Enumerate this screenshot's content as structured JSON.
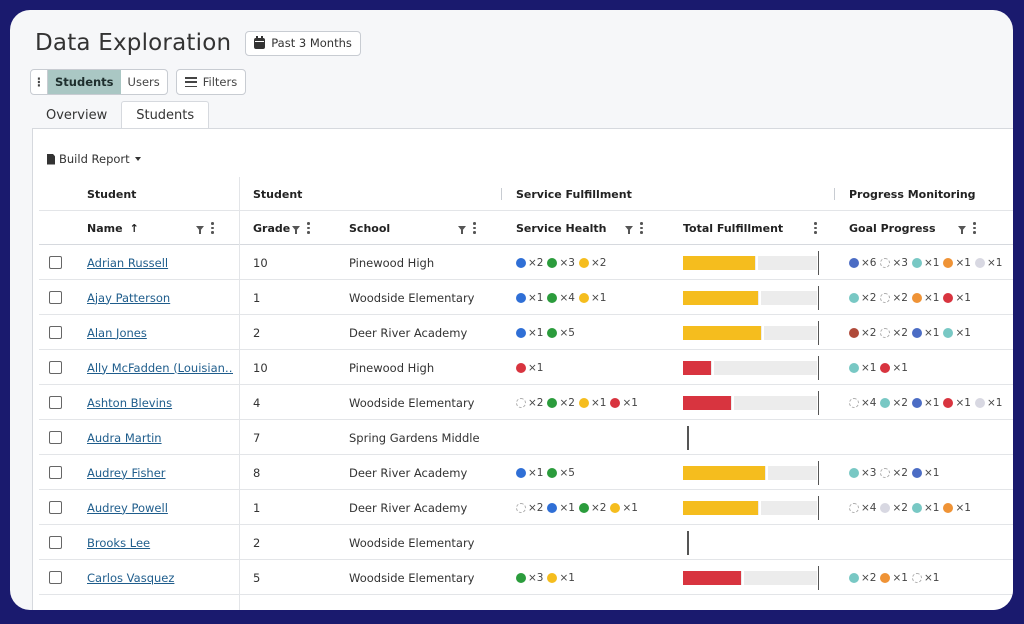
{
  "page": {
    "title": "Data Exploration",
    "date_range": "Past 3 Months",
    "view_toggle": [
      "Students",
      "Users"
    ],
    "filters_label": "Filters",
    "tabs": [
      "Overview",
      "Students"
    ],
    "build_report": "Build Report"
  },
  "colors": {
    "blue": "#2f6fd6",
    "green": "#2b9c3c",
    "yellow": "#f5bd1e",
    "red": "#d8343f",
    "teal": "#78c8c4",
    "orange": "#ef9336",
    "darkblue": "#4b6cc4",
    "brown": "#b04a3a",
    "lightgray": "#d8d8e2",
    "empty": "empty",
    "bar_yellow": "#f5bd1e",
    "bar_red": "#d8343f"
  },
  "groups": {
    "student_1": "Student",
    "student_2": "Student",
    "service_fulfillment": "Service Fulfillment",
    "progress_monitoring": "Progress Monitoring"
  },
  "columns": {
    "name": "Name",
    "name_sort": "↑",
    "grade": "Grade",
    "school": "School",
    "service_health": "Service Health",
    "total_fulfillment": "Total Fulfillment",
    "goal_progress": "Goal Progress"
  },
  "rows": [
    {
      "name": "Adrian Russell",
      "grade": "10",
      "school": "Pinewood High",
      "health": [
        [
          "blue",
          "×2"
        ],
        [
          "green",
          "×3"
        ],
        [
          "yellow",
          "×2"
        ]
      ],
      "fulfillment": {
        "value": 0.54,
        "color": "yellow",
        "show": true
      },
      "goals": [
        [
          "darkblue",
          "×6"
        ],
        [
          "empty",
          "×3"
        ],
        [
          "teal",
          "×1"
        ],
        [
          "orange",
          "×1"
        ],
        [
          "lightgray",
          "×1"
        ]
      ]
    },
    {
      "name": "Ajay Patterson",
      "grade": "1",
      "school": "Woodside Elementary",
      "health": [
        [
          "blue",
          "×1"
        ],
        [
          "green",
          "×4"
        ],
        [
          "yellow",
          "×1"
        ]
      ],
      "fulfillment": {
        "value": 0.56,
        "color": "yellow",
        "show": true
      },
      "goals": [
        [
          "teal",
          "×2"
        ],
        [
          "empty",
          "×2"
        ],
        [
          "orange",
          "×1"
        ],
        [
          "red",
          "×1"
        ]
      ]
    },
    {
      "name": "Alan Jones",
      "grade": "2",
      "school": "Deer River Academy",
      "health": [
        [
          "blue",
          "×1"
        ],
        [
          "green",
          "×5"
        ]
      ],
      "fulfillment": {
        "value": 0.58,
        "color": "yellow",
        "show": true
      },
      "goals": [
        [
          "brown",
          "×2"
        ],
        [
          "empty",
          "×2"
        ],
        [
          "darkblue",
          "×1"
        ],
        [
          "teal",
          "×1"
        ]
      ]
    },
    {
      "name": "Ally McFadden (Louisian…",
      "grade": "10",
      "school": "Pinewood High",
      "health": [
        [
          "red",
          "×1"
        ]
      ],
      "fulfillment": {
        "value": 0.21,
        "color": "red",
        "show": true
      },
      "goals": [
        [
          "teal",
          "×1"
        ],
        [
          "red",
          "×1"
        ]
      ]
    },
    {
      "name": "Ashton Blevins",
      "grade": "4",
      "school": "Woodside Elementary",
      "health": [
        [
          "empty",
          "×2"
        ],
        [
          "green",
          "×2"
        ],
        [
          "yellow",
          "×1"
        ],
        [
          "red",
          "×1"
        ]
      ],
      "fulfillment": {
        "value": 0.36,
        "color": "red",
        "show": true
      },
      "goals": [
        [
          "empty",
          "×4"
        ],
        [
          "teal",
          "×2"
        ],
        [
          "darkblue",
          "×1"
        ],
        [
          "red",
          "×1"
        ],
        [
          "lightgray",
          "×1"
        ]
      ]
    },
    {
      "name": "Audra Martin",
      "grade": "7",
      "school": "Spring Gardens Middle",
      "health": [],
      "fulfillment": {
        "value": 0,
        "color": "yellow",
        "show": false
      },
      "goals": []
    },
    {
      "name": "Audrey Fisher",
      "grade": "8",
      "school": "Deer River Academy",
      "health": [
        [
          "blue",
          "×1"
        ],
        [
          "green",
          "×5"
        ]
      ],
      "fulfillment": {
        "value": 0.61,
        "color": "yellow",
        "show": true
      },
      "goals": [
        [
          "teal",
          "×3"
        ],
        [
          "empty",
          "×2"
        ],
        [
          "darkblue",
          "×1"
        ]
      ]
    },
    {
      "name": "Audrey Powell",
      "grade": "1",
      "school": "Deer River Academy",
      "health": [
        [
          "empty",
          "×2"
        ],
        [
          "blue",
          "×1"
        ],
        [
          "green",
          "×2"
        ],
        [
          "yellow",
          "×1"
        ]
      ],
      "fulfillment": {
        "value": 0.56,
        "color": "yellow",
        "show": true
      },
      "goals": [
        [
          "empty",
          "×4"
        ],
        [
          "lightgray",
          "×2"
        ],
        [
          "teal",
          "×1"
        ],
        [
          "orange",
          "×1"
        ]
      ]
    },
    {
      "name": "Brooks Lee",
      "grade": "2",
      "school": "Woodside Elementary",
      "health": [],
      "fulfillment": {
        "value": 0,
        "color": "yellow",
        "show": false
      },
      "goals": []
    },
    {
      "name": "Carlos Vasquez",
      "grade": "5",
      "school": "Woodside Elementary",
      "health": [
        [
          "green",
          "×3"
        ],
        [
          "yellow",
          "×1"
        ]
      ],
      "fulfillment": {
        "value": 0.43,
        "color": "red",
        "show": true
      },
      "goals": [
        [
          "teal",
          "×2"
        ],
        [
          "orange",
          "×1"
        ],
        [
          "empty",
          "×1"
        ]
      ]
    }
  ]
}
